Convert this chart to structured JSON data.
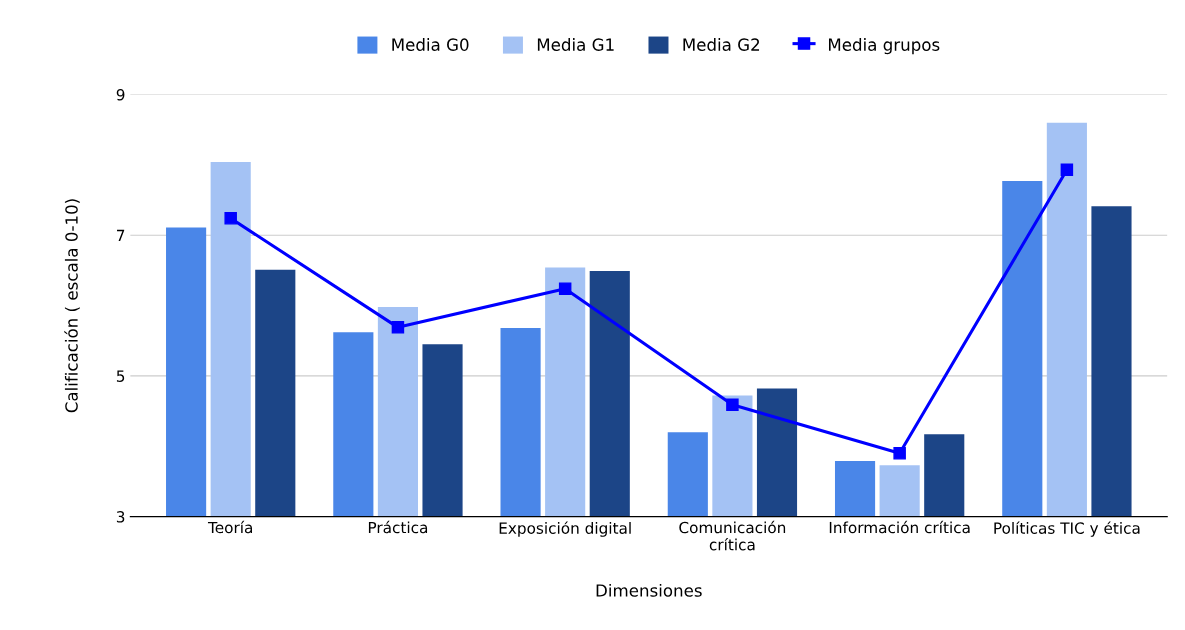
{
  "chart_data": {
    "type": "bar",
    "xlabel": "Dimensiones",
    "ylabel": "Calificación ( escala 0-10)",
    "categories": [
      "Teoría",
      "Práctica",
      "Exposición digital",
      "Comunicación\ncrítica",
      "Información crítica",
      "Políticas TIC y ética"
    ],
    "series": [
      {
        "name": "Media G0",
        "color": "#4a86e8",
        "values": [
          7.11,
          5.62,
          5.68,
          4.2,
          3.79,
          7.77
        ]
      },
      {
        "name": "Media G1",
        "color": "#a4c2f4",
        "values": [
          8.04,
          5.98,
          6.54,
          4.72,
          3.73,
          8.6
        ]
      },
      {
        "name": "Media G2",
        "color": "#1c4587",
        "values": [
          6.51,
          5.45,
          6.49,
          4.82,
          4.17,
          7.41
        ]
      },
      {
        "name": "Media grupos",
        "type": "line",
        "color": "#0000ff",
        "marker": "square",
        "values": [
          7.24,
          5.69,
          6.24,
          4.59,
          3.9,
          7.93
        ]
      }
    ],
    "ylim": [
      3,
      9
    ],
    "yticks": [
      3,
      5,
      7,
      9
    ],
    "grid": "y",
    "legend": "top"
  }
}
